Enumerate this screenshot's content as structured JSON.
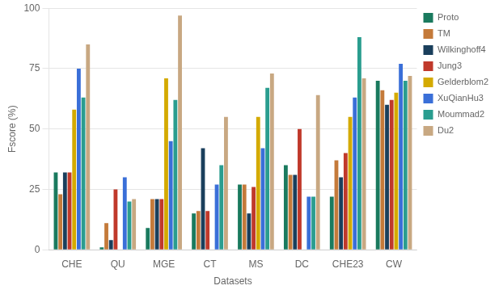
{
  "chart_data": {
    "type": "bar",
    "categories": [
      "CHE",
      "QU",
      "MGE",
      "CT",
      "MS",
      "DC",
      "CHE23",
      "CW"
    ],
    "series": [
      {
        "name": "Proto",
        "color": "#1a7a5e",
        "values": [
          32,
          1,
          9,
          15,
          27,
          35,
          22,
          70
        ]
      },
      {
        "name": "TM",
        "color": "#c47a3a",
        "values": [
          23,
          11,
          21,
          16,
          27,
          31,
          37,
          66
        ]
      },
      {
        "name": "Wilkinghoff4",
        "color": "#1a3f5c",
        "values": [
          32,
          4,
          21,
          42,
          15,
          31,
          30,
          60
        ]
      },
      {
        "name": "Jung3",
        "color": "#c0392b",
        "values": [
          32,
          25,
          21,
          16,
          26,
          50,
          40,
          62
        ]
      },
      {
        "name": "Gelderblom2",
        "color": "#d4aa00",
        "values": [
          58,
          0,
          71,
          0,
          55,
          0,
          55,
          65
        ]
      },
      {
        "name": "XuQianHu3",
        "color": "#3a6fd8",
        "values": [
          75,
          30,
          45,
          27,
          42,
          22,
          63,
          77
        ]
      },
      {
        "name": "Moummad2",
        "color": "#2a9d8f",
        "values": [
          63,
          20,
          62,
          35,
          67,
          22,
          88,
          70
        ]
      },
      {
        "name": "Du2",
        "color": "#c8a882",
        "values": [
          85,
          21,
          97,
          55,
          73,
          64,
          71,
          72
        ]
      }
    ],
    "xlabel": "Datasets",
    "ylabel": "Fscore (%)",
    "ylim": [
      0,
      100
    ],
    "yticks": [
      0,
      25,
      50,
      75,
      100
    ],
    "grid": true,
    "legend": "right"
  }
}
